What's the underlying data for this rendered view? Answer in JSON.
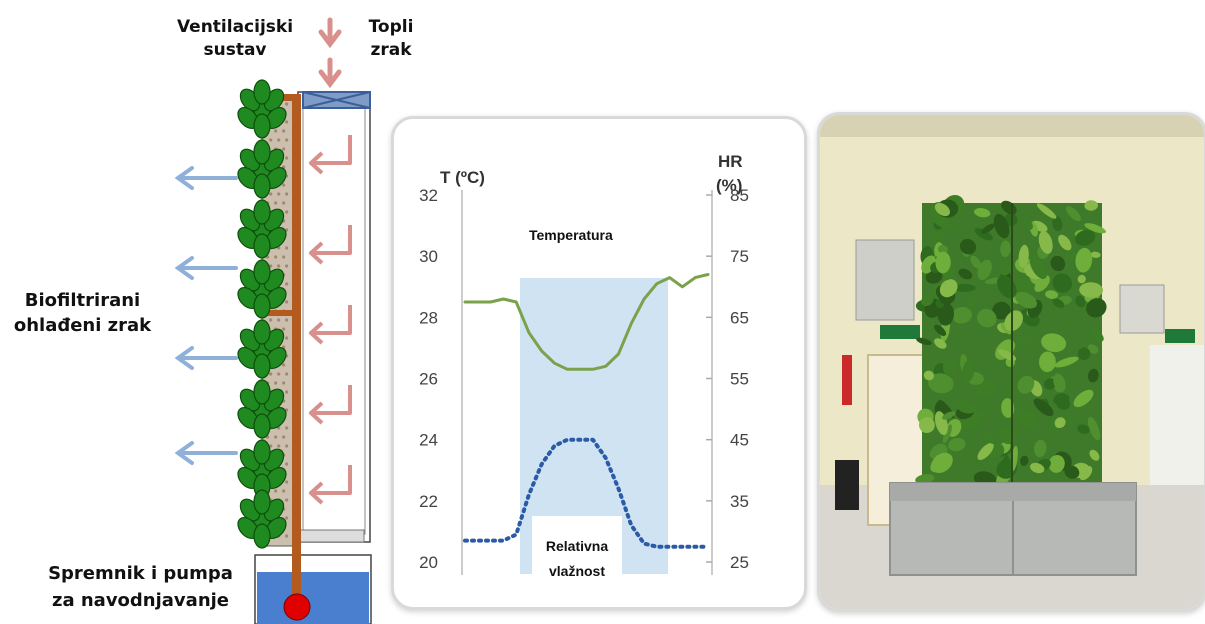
{
  "left_diagram": {
    "ventilation_label": [
      "Ventilacijski",
      "sustav"
    ],
    "warm_air_label": [
      "Topli",
      "zrak"
    ],
    "filtered_air_label": [
      "Biofiltrirani",
      "ohlađeni zrak"
    ],
    "tank_label": [
      "Spremnik i pumpa",
      "za navodnjavanje"
    ],
    "colors": {
      "warm_arrow": "#d9908c",
      "cool_arrow": "#8fb0d9",
      "water": "#4a7fd0",
      "pump": "#e00000",
      "pipe": "#b35a1f",
      "frame": "#3b5f9a"
    }
  },
  "chart_data": {
    "type": "line",
    "left_axis_title": "T (ºC)",
    "right_axis_title": [
      "HR",
      "(%)"
    ],
    "left_ticks": [
      "32",
      "30",
      "28",
      "26",
      "24",
      "22",
      "20"
    ],
    "right_ticks": [
      "85",
      "75",
      "65",
      "55",
      "45",
      "35",
      "25"
    ],
    "ylim_left": [
      20,
      32
    ],
    "ylim_right": [
      25,
      85
    ],
    "series": [
      {
        "name": "Temperatura",
        "axis": "left",
        "style": "solid",
        "color": "#7aa24a",
        "values": [
          28.5,
          28.5,
          28.5,
          28.6,
          28.5,
          27.5,
          26.9,
          26.5,
          26.3,
          26.3,
          26.3,
          26.4,
          26.8,
          27.8,
          28.6,
          29.1,
          29.3,
          29.0,
          29.3,
          29.4
        ]
      },
      {
        "name": "Relativna vlažnost",
        "axis": "right",
        "style": "dotted",
        "color": "#2b5aa8",
        "values": [
          28.5,
          28.5,
          28.5,
          28.5,
          29.5,
          36,
          41,
          44,
          45,
          45,
          45,
          42,
          37,
          31,
          28,
          27.5,
          27.5,
          27.5,
          27.5,
          27.5
        ]
      }
    ],
    "series_labels": {
      "temperature": "Temperatura",
      "humidity": [
        "Relativna",
        "vlažnost"
      ]
    },
    "shaded_band_color": "#cfe3f2"
  },
  "photo": {
    "description_colors": {
      "wall": "#e9e4c8",
      "plants": "#3f7a2a",
      "planter": "#b7b9b6",
      "floor": "#d6d4cc"
    }
  }
}
